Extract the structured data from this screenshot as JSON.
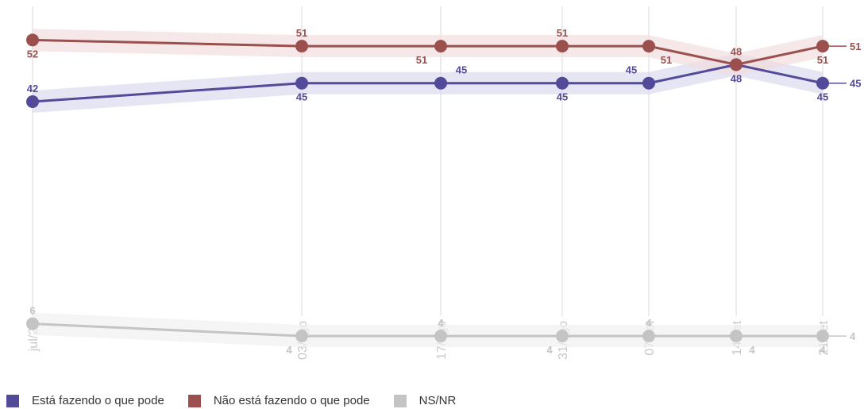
{
  "chart_data": {
    "type": "line",
    "categories": [
      "jul/22",
      "03/ago",
      "17/ago",
      "31/ago",
      "07/set",
      "14/set",
      "21/set"
    ],
    "ylim": [
      0,
      56
    ],
    "grid": "vertical",
    "legend_position": "bottom-left",
    "series": [
      {
        "name": "Está fazendo o que pode",
        "color": "#534b9a",
        "band_color": "#d9d7ee",
        "values": [
          42,
          45,
          45,
          45,
          45,
          48,
          45
        ],
        "labels": [
          "42",
          "45",
          "45",
          "45",
          "45",
          "48",
          "45"
        ],
        "end_label": "45"
      },
      {
        "name": "Não está fazendo o que pode",
        "color": "#9b504e",
        "band_color": "#f1dcdc",
        "values": [
          52,
          51,
          51,
          51,
          51,
          48,
          51
        ],
        "labels": [
          "52",
          "51",
          "51",
          "51",
          "51",
          "48",
          "51"
        ],
        "end_label": "51"
      },
      {
        "name": "NS/NR",
        "color": "#c4c4c4",
        "band_color": "#efefef",
        "values": [
          6,
          4,
          4,
          4,
          4,
          4,
          4
        ],
        "labels": [
          "6",
          "4",
          "4",
          "4",
          "4",
          "4",
          "4"
        ],
        "end_label": "4"
      }
    ]
  }
}
